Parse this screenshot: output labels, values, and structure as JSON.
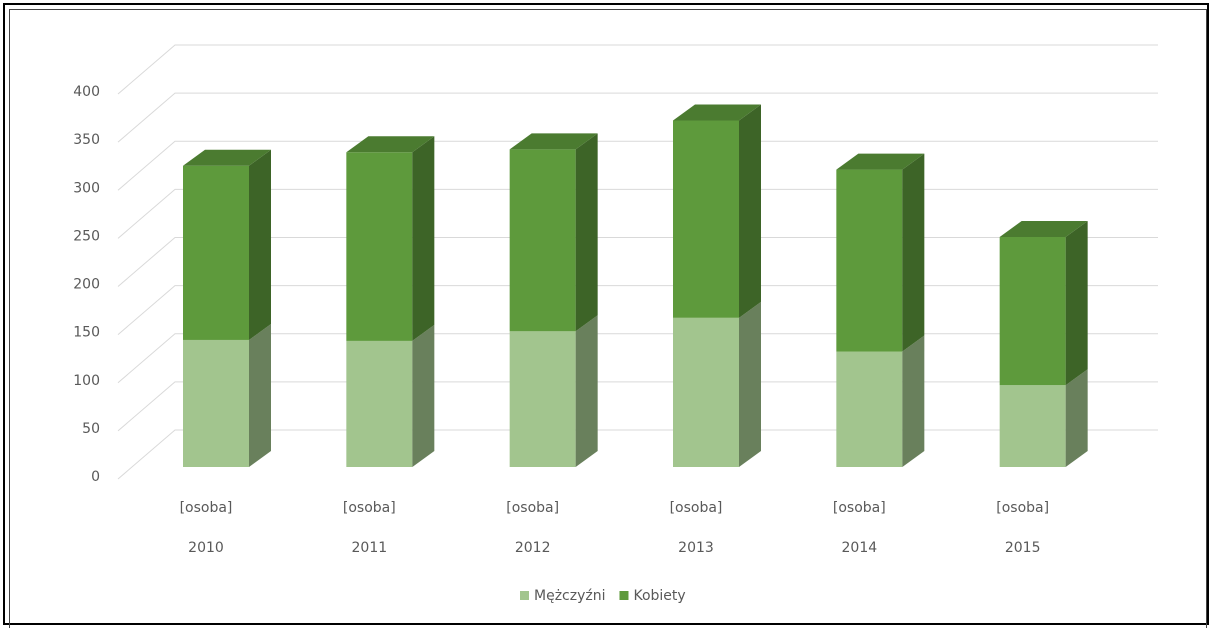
{
  "chart_data": {
    "type": "bar3d_stacked",
    "categories": [
      [
        "[osoba]",
        "2010"
      ],
      [
        "[osoba]",
        "2011"
      ],
      [
        "[osoba]",
        "2012"
      ],
      [
        "[osoba]",
        "2013"
      ],
      [
        "[osoba]",
        "2014"
      ],
      [
        "[osoba]",
        "2015"
      ]
    ],
    "series": [
      {
        "name": "Mężczyźni",
        "color": "#a2c58e",
        "values": [
          132,
          131,
          141,
          155,
          120,
          85
        ]
      },
      {
        "name": "Kobiety",
        "color": "#5e9a3c",
        "values": [
          181,
          196,
          189,
          205,
          189,
          154
        ]
      }
    ],
    "ylim": [
      0,
      400
    ],
    "yticks": [
      0,
      50,
      100,
      150,
      200,
      250,
      300,
      350,
      400
    ],
    "grid": true,
    "legend": "bottom"
  }
}
